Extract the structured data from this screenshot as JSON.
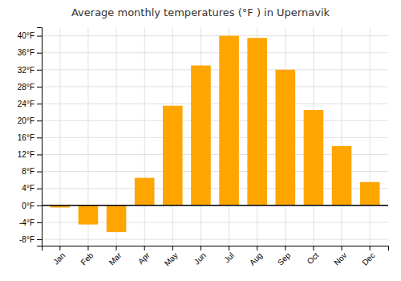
{
  "chart_data": {
    "type": "bar",
    "title": "Average monthly temperatures (°F ) in Upernavik",
    "categories": [
      "Jan",
      "Feb",
      "Mar",
      "Apr",
      "May",
      "Jun",
      "Jul",
      "Aug",
      "Sep",
      "Oct",
      "Nov",
      "Dec"
    ],
    "values": [
      -0.5,
      -4.5,
      -6.3,
      6.5,
      23.5,
      33.0,
      40.0,
      39.5,
      32.0,
      22.5,
      14.0,
      5.5
    ],
    "color": "#FFA500",
    "ylim": [
      -9.5,
      42
    ],
    "yticks": [
      {
        "value": -8,
        "label": "-8°F"
      },
      {
        "value": -4,
        "label": "-4°F"
      },
      {
        "value": 0,
        "label": "0°F"
      },
      {
        "value": 4,
        "label": "4°F"
      },
      {
        "value": 8,
        "label": "8°F"
      },
      {
        "value": 12,
        "label": "12°F"
      },
      {
        "value": 16,
        "label": "16°F"
      },
      {
        "value": 20,
        "label": "20°F"
      },
      {
        "value": 24,
        "label": "24°F"
      },
      {
        "value": 28,
        "label": "28°F"
      },
      {
        "value": 32,
        "label": "32°F"
      },
      {
        "value": 36,
        "label": "36°F"
      },
      {
        "value": 40,
        "label": "40°F"
      }
    ],
    "grid": true
  }
}
